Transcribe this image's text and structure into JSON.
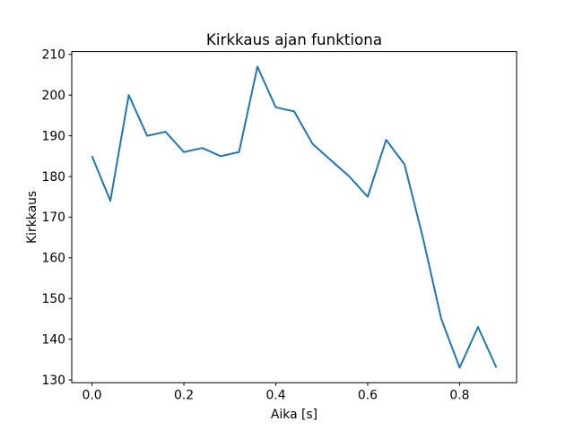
{
  "figure": {
    "background": "#ffffff"
  },
  "chart_data": {
    "type": "line",
    "title": "Kirkkaus ajan funktiona",
    "xlabel": "Aika [s]",
    "ylabel": "Kirkkaus",
    "x": [
      0.0,
      0.04,
      0.08,
      0.12,
      0.16,
      0.2,
      0.24,
      0.28,
      0.32,
      0.36,
      0.4,
      0.44,
      0.48,
      0.52,
      0.56,
      0.6,
      0.64,
      0.68,
      0.72,
      0.76,
      0.8,
      0.84,
      0.88
    ],
    "y": [
      185,
      174,
      200,
      190,
      191,
      186,
      187,
      185,
      186,
      207,
      197,
      196,
      188,
      184,
      180,
      175,
      189,
      183,
      165,
      145,
      133,
      143,
      133
    ],
    "line_color": "#1f77b4",
    "axis_color": "#000000",
    "text_color": "#000000",
    "xlim": [
      -0.044,
      0.924
    ],
    "ylim": [
      129.3,
      210.7
    ],
    "xticks": [
      0.0,
      0.2,
      0.4,
      0.6,
      0.8
    ],
    "xtick_labels": [
      "0.0",
      "0.2",
      "0.4",
      "0.6",
      "0.8"
    ],
    "yticks": [
      130,
      140,
      150,
      160,
      170,
      180,
      190,
      200,
      210
    ],
    "ytick_labels": [
      "130",
      "140",
      "150",
      "160",
      "170",
      "180",
      "190",
      "200",
      "210"
    ],
    "grid": false,
    "legend": null
  }
}
